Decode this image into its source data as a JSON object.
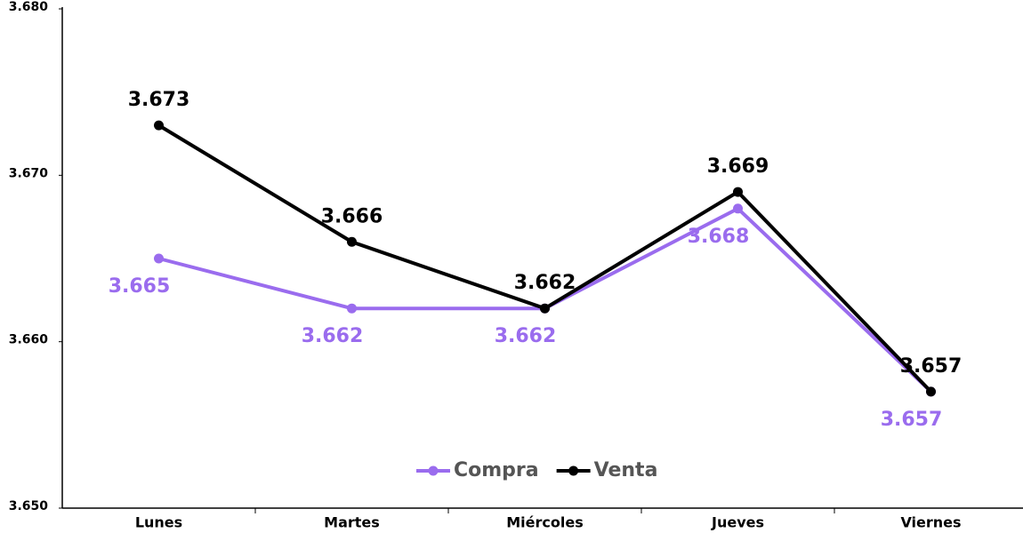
{
  "chart_data": {
    "type": "line",
    "categories": [
      "Lunes",
      "Martes",
      "Miércoles",
      "Jueves",
      "Viernes"
    ],
    "series": [
      {
        "name": "Compra",
        "color": "#9a6cee",
        "values": [
          3.665,
          3.662,
          3.662,
          3.668,
          3.657
        ]
      },
      {
        "name": "Venta",
        "color": "#000000",
        "values": [
          3.673,
          3.666,
          3.662,
          3.669,
          3.657
        ]
      }
    ],
    "ylim": [
      3.65,
      3.68
    ],
    "yticks": [
      {
        "value": 3.65,
        "label": "3.650"
      },
      {
        "value": 3.66,
        "label": "3.660"
      },
      {
        "value": 3.67,
        "label": "3.670"
      },
      {
        "value": 3.68,
        "label": "3.680"
      }
    ],
    "grid": false,
    "legend": "lower center"
  }
}
